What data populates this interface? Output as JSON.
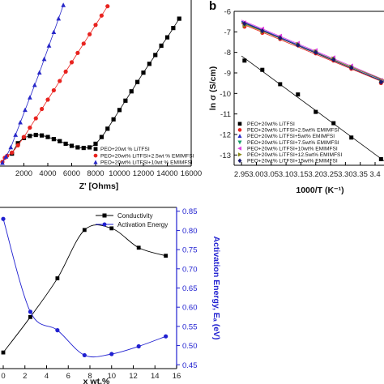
{
  "chart_data": [
    {
      "type": "scatter",
      "panel_label": "",
      "xlabel": "Z' [Ohms]",
      "ylabel": "",
      "xlim": [
        0,
        16000
      ],
      "ylim": [
        0,
        16000
      ],
      "xticks": [
        "2000",
        "4000",
        "6000",
        "8000",
        "10000",
        "12000",
        "14000",
        "16000"
      ],
      "legend_position": "lower-right",
      "series": [
        {
          "name": "PEO+20wt % LiTFSI",
          "color": "#000000",
          "marker": "square",
          "x": [
            1000,
            1500,
            2000,
            2500,
            3000,
            3500,
            4000,
            4500,
            5000,
            5500,
            6000,
            6500,
            7000,
            7500,
            8000,
            8500,
            9000,
            9500,
            10000,
            10500,
            11000,
            11500,
            12000,
            12500,
            13000,
            13500,
            14000,
            14500,
            15000
          ],
          "y": [
            1200,
            2200,
            2700,
            2900,
            3000,
            2950,
            2800,
            2600,
            2400,
            2150,
            1950,
            1800,
            1750,
            1800,
            2150,
            2800,
            3600,
            4500,
            5400,
            6300,
            7200,
            8100,
            9000,
            9850,
            10700,
            11600,
            12400,
            13300,
            14200
          ]
        },
        {
          "name": "PEO+20wt% LiTFSI+2.5wt % EMIMFSI",
          "color": "#e8231f",
          "marker": "circle",
          "x": [
            200,
            400,
            600,
            1000,
            1500,
            2000,
            2500,
            3000,
            3500,
            4000,
            4500,
            5000,
            5500,
            6000,
            6500,
            7000,
            7500,
            8000,
            8500,
            9000
          ],
          "y": [
            400,
            800,
            1000,
            1300,
            2000,
            2800,
            3700,
            4600,
            5500,
            6400,
            7300,
            8200,
            9100,
            10000,
            10900,
            11800,
            12700,
            13600,
            14500,
            15400
          ]
        },
        {
          "name": "PEO+20wt% LiTFSI+10wt % EMIMFSI",
          "color": "#2727c8",
          "marker": "triangle",
          "x": [
            200,
            500,
            900,
            1300,
            1700,
            2100,
            2500,
            2900,
            3300,
            3700,
            4100,
            4500,
            4900,
            5300
          ],
          "y": [
            300,
            900,
            1800,
            3000,
            4200,
            5400,
            6600,
            7800,
            9000,
            10300,
            11600,
            12900,
            14200,
            15500
          ]
        }
      ]
    },
    {
      "type": "scatter",
      "panel_label": "b",
      "xlabel": "1000/T (K⁻¹)",
      "ylabel": "ln σ (S/cm)",
      "xlim": [
        2.925,
        3.43
      ],
      "ylim": [
        -13.5,
        -6
      ],
      "xticks": [
        "2.95",
        "3.00",
        "3.05",
        "3.10",
        "3.15",
        "3.20",
        "3.25",
        "3.30",
        "3.35",
        "3.4"
      ],
      "yticks": [
        "-6",
        "-7",
        "-8",
        "-9",
        "-10",
        "-11",
        "-12",
        "-13"
      ],
      "legend_position": "lower-left",
      "series": [
        {
          "name": "PEO+20wt% LiTFSI",
          "color": "#000000",
          "marker": "square",
          "x": [
            2.96,
            3.02,
            3.08,
            3.14,
            3.2,
            3.26,
            3.32,
            3.42
          ],
          "y": [
            -8.4,
            -8.85,
            -9.55,
            -10.05,
            -10.9,
            -11.45,
            -12.15,
            -13.2
          ]
        },
        {
          "name": "PEO+20wt% LiTFSI+2.5wt% EMIMFSI",
          "color": "#e8231f",
          "marker": "circle",
          "x": [
            2.96,
            3.02,
            3.08,
            3.14,
            3.2,
            3.26,
            3.32,
            3.42
          ],
          "y": [
            -6.75,
            -7.05,
            -7.35,
            -7.65,
            -8.05,
            -8.4,
            -8.8,
            -9.5
          ]
        },
        {
          "name": "PEO+20wt% LiTFSI+5wt% EMIMFSI",
          "color": "#2727c8",
          "marker": "triangle",
          "x": [
            2.96,
            3.02,
            3.08,
            3.14,
            3.2,
            3.26,
            3.32,
            3.42
          ],
          "y": [
            -6.6,
            -6.9,
            -7.25,
            -7.6,
            -7.95,
            -8.3,
            -8.7,
            -9.4
          ]
        },
        {
          "name": "PEO+20wt% LiTFSI+7.5wt% EMIMFSI",
          "color": "#1a9e6a",
          "marker": "triangle-down",
          "x": [
            2.96,
            3.02,
            3.08,
            3.14,
            3.2,
            3.26,
            3.32,
            3.42
          ],
          "y": [
            -6.65,
            -6.95,
            -7.3,
            -7.65,
            -8.0,
            -8.35,
            -8.75,
            -9.45
          ]
        },
        {
          "name": "PEO+20wt% LiTFSI+10wt% EMIMFSI",
          "color": "#e040e0",
          "marker": "triangle-left",
          "x": [
            2.96,
            3.02,
            3.08,
            3.14,
            3.2,
            3.26,
            3.32,
            3.42
          ],
          "y": [
            -6.55,
            -6.85,
            -7.2,
            -7.55,
            -7.9,
            -8.25,
            -8.65,
            -9.35
          ]
        },
        {
          "name": "PEO+20wt% LiTFSI+12.5wt% EMIMFSI",
          "color": "#8a8a18",
          "marker": "triangle-right",
          "x": [
            2.96,
            3.02,
            3.08,
            3.14,
            3.2,
            3.26,
            3.32,
            3.42
          ],
          "y": [
            -6.7,
            -7.0,
            -7.3,
            -7.6,
            -7.95,
            -8.3,
            -8.7,
            -9.4
          ]
        },
        {
          "name": "PEO+20wt% LiTFSI+15wt% EMIMFSI",
          "color": "#1a1a6e",
          "marker": "diamond",
          "x": [
            2.96,
            3.02,
            3.08,
            3.14,
            3.2,
            3.26,
            3.32,
            3.42
          ],
          "y": [
            -6.6,
            -6.95,
            -7.3,
            -7.65,
            -8.0,
            -8.35,
            -8.75,
            -9.45
          ]
        }
      ]
    },
    {
      "type": "line",
      "panel_label": "",
      "xlabel": "x wt.%",
      "ylabel": "",
      "y2label": "Activation Energy, Eₐ (eV)",
      "xlim": [
        -0.3,
        16
      ],
      "xticks": [
        "0",
        "2",
        "4",
        "6",
        "8",
        "10",
        "12",
        "14",
        "16"
      ],
      "y2lim": [
        0.44,
        0.86
      ],
      "y2ticks": [
        "0.45",
        "0.50",
        "0.55",
        "0.60",
        "0.65",
        "0.70",
        "0.75",
        "0.80",
        "0.85"
      ],
      "legend_position": "top-right",
      "series": [
        {
          "name": "Conductivity",
          "color": "#000000",
          "marker": "square",
          "axis": "left",
          "x": [
            0,
            2.5,
            5,
            7.5,
            10,
            12.5,
            15
          ],
          "y": [
            0.1,
            0.32,
            0.56,
            0.86,
            0.87,
            0.75,
            0.7
          ]
        },
        {
          "name": "Activation Energy",
          "color": "#2020d0",
          "marker": "circle",
          "axis": "right",
          "x": [
            0,
            2.5,
            5,
            7.5,
            10,
            12.5,
            15
          ],
          "y": [
            0.83,
            0.588,
            0.54,
            0.475,
            0.478,
            0.498,
            0.524
          ]
        }
      ]
    }
  ]
}
